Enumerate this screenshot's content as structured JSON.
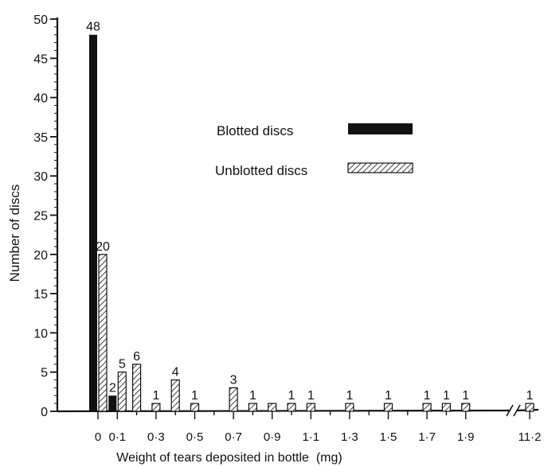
{
  "chart_data": {
    "type": "bar",
    "xlabel": "Weight of tears deposited in bottle  (mg)",
    "ylabel": "Number of discs",
    "ylim": [
      0,
      50
    ],
    "yticks": [
      "0",
      "5",
      "10",
      "15",
      "20",
      "25",
      "30",
      "35",
      "40",
      "45",
      "50"
    ],
    "xtick_labels": [
      "0",
      "0·1",
      "0·3",
      "0·5",
      "0·7",
      "0·9",
      "1·1",
      "1·3",
      "1·5",
      "1·7",
      "1·9",
      "11·2"
    ],
    "axis_break": "between 1·9 and 11·2",
    "legend": {
      "placement": "center-right",
      "items": [
        {
          "label": "Blotted discs",
          "style": "solid"
        },
        {
          "label": "Unblotted discs",
          "style": "hatched"
        }
      ]
    },
    "series": [
      {
        "name": "Blotted discs",
        "points": [
          {
            "x": 0,
            "value": 48,
            "label": "48"
          },
          {
            "x": 0.1,
            "value": 2,
            "label": "2"
          }
        ]
      },
      {
        "name": "Unblotted discs",
        "points": [
          {
            "x": 0,
            "value": 20,
            "label": "20"
          },
          {
            "x": 0.1,
            "value": 5,
            "label": "5"
          },
          {
            "x": 0.2,
            "value": 6,
            "label": "6"
          },
          {
            "x": 0.3,
            "value": 1,
            "label": "1"
          },
          {
            "x": 0.4,
            "value": 4,
            "label": "4"
          },
          {
            "x": 0.5,
            "value": 1,
            "label": "1"
          },
          {
            "x": 0.7,
            "value": 3,
            "label": "3"
          },
          {
            "x": 0.8,
            "value": 1,
            "label": "1"
          },
          {
            "x": 0.9,
            "value": 1,
            "label": ""
          },
          {
            "x": 1.0,
            "value": 1,
            "label": "1"
          },
          {
            "x": 1.1,
            "value": 1,
            "label": "1"
          },
          {
            "x": 1.3,
            "value": 1,
            "label": "1"
          },
          {
            "x": 1.5,
            "value": 1,
            "label": "1"
          },
          {
            "x": 1.7,
            "value": 1,
            "label": "1"
          },
          {
            "x": 1.8,
            "value": 1,
            "label": "1"
          },
          {
            "x": 1.9,
            "value": 1,
            "label": "1"
          },
          {
            "x": 11.2,
            "value": 1,
            "label": "1"
          }
        ]
      }
    ]
  }
}
